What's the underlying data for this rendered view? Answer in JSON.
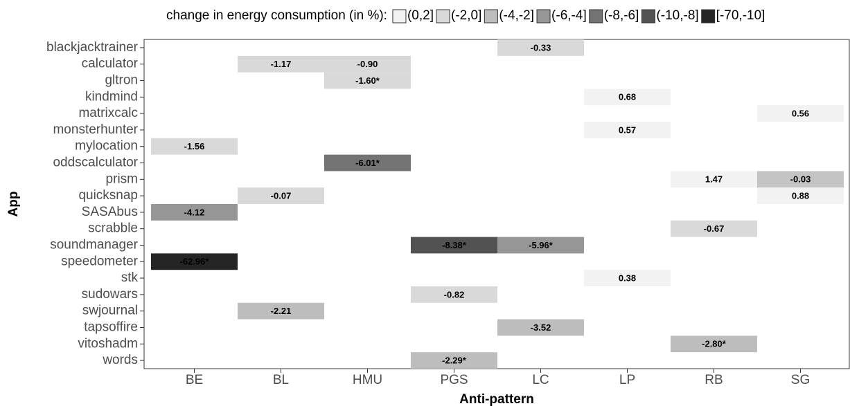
{
  "chart_data": {
    "type": "heatmap",
    "x_label": "Anti-pattern",
    "y_label": "App",
    "categories": [
      "BE",
      "BL",
      "HMU",
      "PGS",
      "LC",
      "LP",
      "RB",
      "SG"
    ],
    "y_categories": [
      "blackjacktrainer",
      "calculator",
      "gltron",
      "kindmind",
      "matrixcalc",
      "monsterhunter",
      "mylocation",
      "oddscalculator",
      "prism",
      "quicksnap",
      "SASAbus",
      "scrabble",
      "soundmanager",
      "speedometer",
      "stk",
      "sudowars",
      "swjournal",
      "tapsoffire",
      "vitoshadm",
      "words"
    ],
    "legend": {
      "title": "change in energy consumption (in %):",
      "labels": [
        "(0,2]",
        "(-2,0]",
        "(-4,-2]",
        "(-6,-4]",
        "(-8,-6]",
        "(-10,-8]",
        "[-70,-10]"
      ],
      "colors": [
        "#f2f2f2",
        "#d9d9d9",
        "#bdbdbd",
        "#969696",
        "#737373",
        "#525252",
        "#252525"
      ]
    },
    "x": [
      "LC",
      "BL",
      "HMU",
      "HMU",
      "LP",
      "SG",
      "LP",
      "BE",
      "HMU",
      "RB",
      "SG",
      "BL",
      "SG",
      "BE",
      "RB",
      "PGS",
      "LC",
      "BE",
      "LP",
      "PGS",
      "BL",
      "LC",
      "RB",
      "PGS"
    ],
    "y": [
      "blackjacktrainer",
      "calculator",
      "calculator",
      "gltron",
      "kindmind",
      "matrixcalc",
      "monsterhunter",
      "mylocation",
      "oddscalculator",
      "prism",
      "prism",
      "quicksnap",
      "quicksnap",
      "SASAbus",
      "scrabble",
      "soundmanager",
      "soundmanager",
      "speedometer",
      "stk",
      "sudowars",
      "swjournal",
      "tapsoffire",
      "vitoshadm",
      "words"
    ],
    "values": [
      -0.33,
      -1.17,
      -0.9,
      -1.6,
      0.68,
      0.56,
      0.57,
      -1.56,
      -6.01,
      1.47,
      -0.03,
      -0.07,
      0.88,
      -4.12,
      -0.67,
      -8.38,
      -5.96,
      -62.96,
      0.38,
      -0.82,
      -2.21,
      -3.52,
      -2.8,
      -2.29
    ],
    "value_labels": [
      "-0.33",
      "-1.17",
      "-0.90",
      "-1.60*",
      "0.68",
      "0.56",
      "0.57",
      "-1.56",
      "-6.01*",
      "1.47",
      "-0.03",
      "-0.07",
      "0.88",
      "-4.12",
      "-0.67",
      "-8.38*",
      "-5.96*",
      "-62.96*",
      "0.38",
      "-0.82",
      "-2.21",
      "-3.52",
      "-2.80*",
      "-2.29*"
    ],
    "colors": [
      "#d9d9d9",
      "#d9d9d9",
      "#d9d9d9",
      "#d9d9d9",
      "#f2f2f2",
      "#f2f2f2",
      "#f2f2f2",
      "#d9d9d9",
      "#737373",
      "#f2f2f2",
      "#c4c4c4",
      "#d9d9d9",
      "#f2f2f2",
      "#969696",
      "#d9d9d9",
      "#525252",
      "#969696",
      "#252525",
      "#f2f2f2",
      "#d9d9d9",
      "#bdbdbd",
      "#bdbdbd",
      "#bdbdbd",
      "#bdbdbd"
    ]
  }
}
